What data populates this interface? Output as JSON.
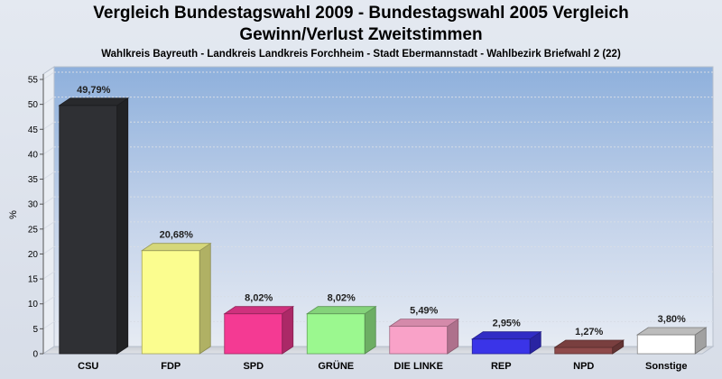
{
  "chart_data": {
    "type": "bar",
    "title": "Vergleich Bundestagswahl 2009 - Bundestagswahl 2005 Vergleich",
    "title_line2": "Gewinn/Verlust Zweitstimmen",
    "subtitle": "Wahlkreis Bayreuth - Landkreis Landkreis Forchheim - Stadt Ebermannstadt - Wahlbezirk Briefwahl 2 (22)",
    "ylabel": "%",
    "xlabel": "",
    "ylim": [
      0,
      55
    ],
    "yticks": [
      0,
      5,
      10,
      15,
      20,
      25,
      30,
      35,
      40,
      45,
      50,
      55
    ],
    "grid": true,
    "categories": [
      "CSU",
      "FDP",
      "SPD",
      "GRÜNE",
      "DIE LINKE",
      "REP",
      "NPD",
      "Sonstige"
    ],
    "values": [
      49.79,
      20.68,
      8.02,
      8.02,
      5.49,
      2.95,
      1.27,
      3.8
    ],
    "value_labels": [
      "49,79%",
      "20,68%",
      "8,02%",
      "8,02%",
      "5,49%",
      "2,95%",
      "1,27%",
      "3,80%"
    ],
    "colors": [
      "#2f3034",
      "#fbfd8f",
      "#f43a93",
      "#9bf88f",
      "#f9a2c8",
      "#3a34e8",
      "#8e4a4a",
      "#ffffff"
    ]
  }
}
